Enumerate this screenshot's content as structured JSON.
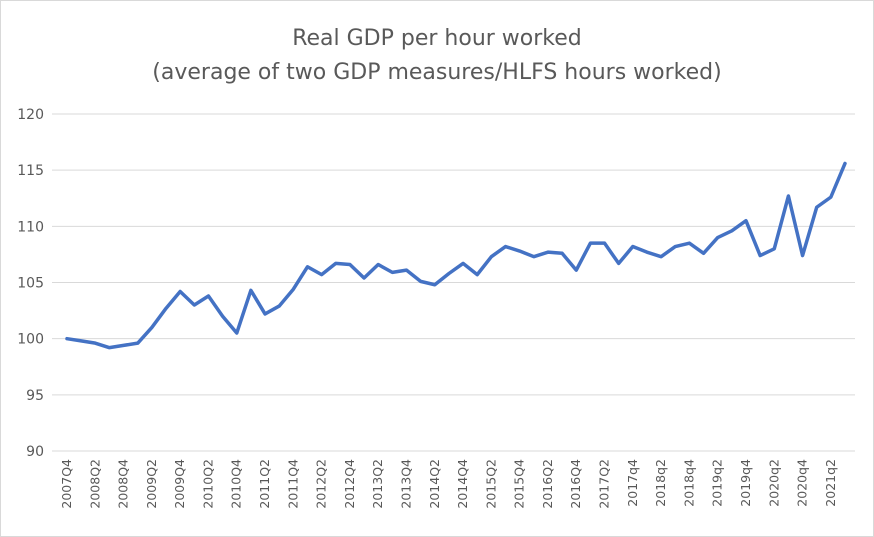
{
  "chart_data": {
    "type": "line",
    "title": "Real GDP per hour worked",
    "subtitle": "(average of two GDP measures/HLFS hours worked)",
    "xlabel": "",
    "ylabel": "",
    "ylim": [
      90,
      120
    ],
    "yticks": [
      90,
      95,
      100,
      105,
      110,
      115,
      120
    ],
    "grid": true,
    "legend": "none",
    "line_color": "#4472c4",
    "categories": [
      "2007Q4",
      "2008Q1",
      "2008Q2",
      "2008Q3",
      "2008Q4",
      "2009Q1",
      "2009Q2",
      "2009Q3",
      "2009Q4",
      "2010Q1",
      "2010Q2",
      "2010Q3",
      "2010Q4",
      "2011Q1",
      "2011Q2",
      "2011Q3",
      "2011Q4",
      "2012Q1",
      "2012Q2",
      "2012Q3",
      "2012Q4",
      "2013Q1",
      "2013Q2",
      "2013Q3",
      "2013Q4",
      "2014Q1",
      "2014Q2",
      "2014Q3",
      "2014Q4",
      "2015Q1",
      "2015Q2",
      "2015Q3",
      "2015Q4",
      "2016Q1",
      "2016Q2",
      "2016Q3",
      "2016Q4",
      "2017Q1",
      "2017Q2",
      "2017q3",
      "2017q4",
      "2018q1",
      "2018q2",
      "2018q3",
      "2018q4",
      "2019q1",
      "2019q2",
      "2019q3",
      "2019q4",
      "2020q1",
      "2020q2",
      "2020q3",
      "2020q4",
      "2021q1",
      "2021q2",
      "2021q3"
    ],
    "tick_labels": [
      "2007Q4",
      "2008Q2",
      "2008Q4",
      "2009Q2",
      "2009Q4",
      "2010Q2",
      "2010Q4",
      "2011Q2",
      "2011Q4",
      "2012Q2",
      "2012Q4",
      "2013Q2",
      "2013Q4",
      "2014Q2",
      "2014Q4",
      "2015Q2",
      "2015Q4",
      "2016Q2",
      "2016Q4",
      "2017Q2",
      "2017q4",
      "2018q2",
      "2018q4",
      "2019q2",
      "2019q4",
      "2020q2",
      "2020q4",
      "2021q2"
    ],
    "values": [
      100.0,
      99.8,
      99.6,
      99.2,
      99.4,
      99.6,
      101.0,
      102.7,
      104.2,
      103.0,
      103.8,
      102.0,
      100.5,
      104.3,
      102.2,
      102.9,
      104.4,
      106.4,
      105.7,
      106.7,
      106.6,
      105.4,
      106.6,
      105.9,
      106.1,
      105.1,
      104.8,
      105.8,
      106.7,
      105.7,
      107.3,
      108.2,
      107.8,
      107.3,
      107.7,
      107.6,
      106.1,
      108.5,
      108.5,
      106.7,
      108.2,
      107.7,
      107.3,
      108.2,
      108.5,
      107.6,
      109.0,
      109.6,
      110.5,
      107.4,
      108.0,
      112.7,
      107.4,
      111.7,
      112.6,
      115.6
    ]
  }
}
